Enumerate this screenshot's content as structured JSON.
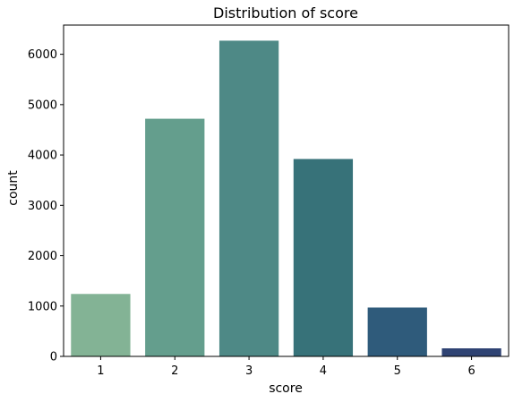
{
  "chart_data": {
    "type": "bar",
    "title": "Distribution of score",
    "xlabel": "score",
    "ylabel": "count",
    "categories": [
      "1",
      "2",
      "3",
      "4",
      "5",
      "6"
    ],
    "values": [
      1240,
      4720,
      6270,
      3920,
      970,
      160
    ],
    "colors": [
      "#83b395",
      "#649e8d",
      "#4e8986",
      "#377279",
      "#2f5b7b",
      "#2f4373"
    ],
    "ylim": [
      0,
      6580
    ],
    "yticks": [
      0,
      1000,
      2000,
      3000,
      4000,
      5000,
      6000
    ],
    "grid": false
  }
}
